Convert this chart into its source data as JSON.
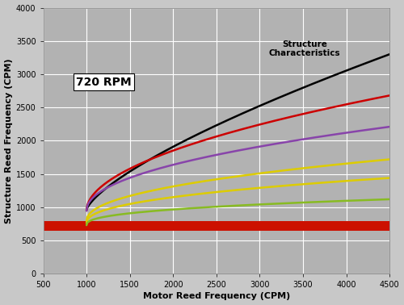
{
  "xlabel": "Motor Reed Frequency (CPM)",
  "ylabel": "Structure Reed Frequency (CPM)",
  "rpm_label": "720 RPM",
  "annotation": "Structure\nCharacteristics",
  "xlim": [
    500,
    4500
  ],
  "ylim": [
    0,
    4000
  ],
  "xticks": [
    500,
    1000,
    1500,
    2000,
    2500,
    3000,
    3500,
    4000,
    4500
  ],
  "yticks": [
    0,
    500,
    1000,
    1500,
    2000,
    2500,
    3000,
    3500,
    4000
  ],
  "background_color": "#b2b2b2",
  "fig_background_color": "#c8c8c8",
  "grid_color": "#ffffff",
  "red_band_ymin": 650,
  "red_band_ymax": 790,
  "red_band_color": "#cc1100",
  "curves": [
    {
      "color": "#000000",
      "x_start": 1000,
      "y_start": 960,
      "x_end": 4500,
      "y_end": 3300,
      "exponent": 0.72
    },
    {
      "color": "#cc0000",
      "x_start": 1000,
      "y_start": 950,
      "x_end": 4500,
      "y_end": 2680,
      "exponent": 0.52
    },
    {
      "color": "#8844aa",
      "x_start": 1000,
      "y_start": 945,
      "x_end": 4500,
      "y_end": 2210,
      "exponent": 0.48
    },
    {
      "color": "#ddcc00",
      "x_start": 1000,
      "y_start": 790,
      "x_end": 4500,
      "y_end": 1720,
      "exponent": 0.46
    },
    {
      "color": "#ddcc00",
      "x_start": 1000,
      "y_start": 760,
      "x_end": 4500,
      "y_end": 1440,
      "exponent": 0.44
    },
    {
      "color": "#88bb22",
      "x_start": 1000,
      "y_start": 730,
      "x_end": 4500,
      "y_end": 1120,
      "exponent": 0.4
    }
  ],
  "axis_label_fontsize": 8,
  "tick_fontsize": 7,
  "rpm_label_fontsize": 10,
  "annotation_fontsize": 7.5,
  "linewidth": 1.8
}
